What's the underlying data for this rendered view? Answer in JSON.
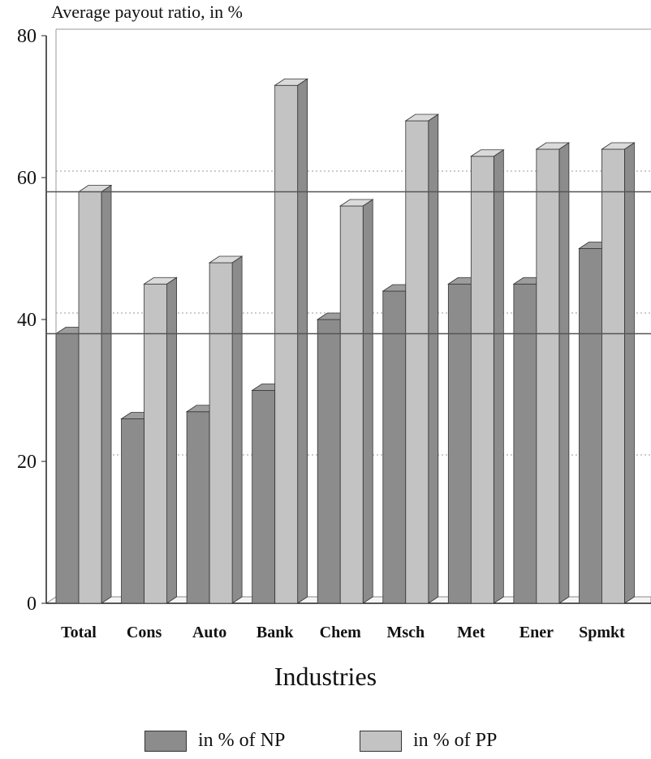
{
  "chart_data": {
    "type": "bar",
    "title": "",
    "ylabel": "Average payout ratio, in %",
    "xlabel": "Industries",
    "ylim": [
      0,
      80
    ],
    "yticks": [
      0,
      20,
      40,
      60,
      80
    ],
    "categories": [
      "Total",
      "Cons",
      "Auto",
      "Bank",
      "Chem",
      "Msch",
      "Met",
      "Ener",
      "Spmkt"
    ],
    "series": [
      {
        "name": "in % of NP",
        "values": [
          38,
          26,
          27,
          30,
          40,
          44,
          45,
          45,
          50
        ],
        "color": "#8c8c8c"
      },
      {
        "name": "in % of PP",
        "values": [
          58,
          45,
          48,
          73,
          56,
          68,
          63,
          64,
          64
        ],
        "color": "#c3c3c3"
      }
    ],
    "reference_lines": [
      38,
      58
    ],
    "grid": "dotted horizontal at 20, 40, 60",
    "style": "3d-bars",
    "legend_position": "bottom"
  }
}
